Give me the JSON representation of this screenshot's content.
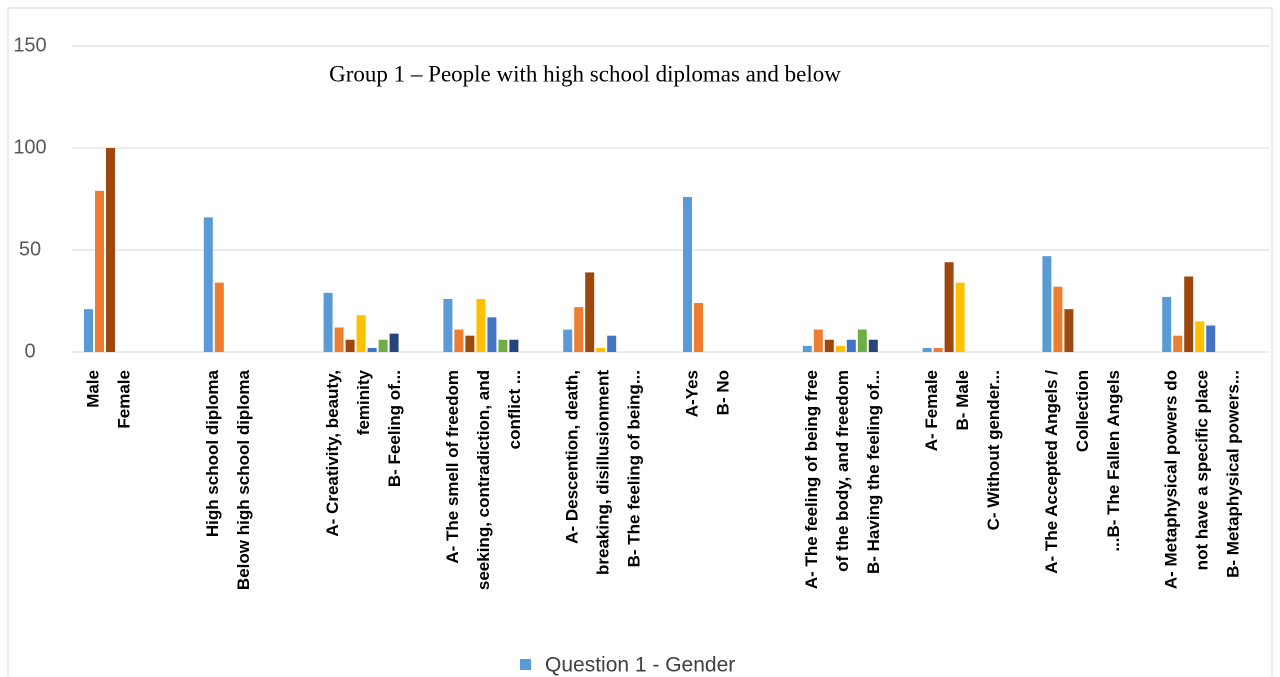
{
  "chart_data": {
    "type": "bar",
    "title": "Group 1 – People with high school diplomas and below",
    "categories": [
      [
        "Male",
        "Female"
      ],
      [
        "High school diploma",
        "Below high school diploma"
      ],
      [
        "A- Creativity, beauty,",
        "feminity",
        "B- Feeling of..."
      ],
      [
        "A- The smell of freedom",
        "seeking, contradiction, and",
        "conflict ..."
      ],
      [
        "A- Descention, death,",
        "breaking, disillusionment",
        "B- The feeling of being..."
      ],
      [
        "A-Yes",
        "B- No"
      ],
      [
        "A- The feeling of being free",
        "of the body, and freedom",
        "B- Having the feeling of..."
      ],
      [
        "A- Female",
        "B- Male",
        "C- Without gender..."
      ],
      [
        "A- The Accepted Angels /",
        "Collection",
        "...B- The Fallen Angels"
      ],
      [
        "A- Metaphysical powers do",
        "not have a specific place",
        "B- Metaphysical powers..."
      ]
    ],
    "series": [
      {
        "name": "Question 1 - Gender",
        "color": "#5b9bd5",
        "values": [
          21,
          66,
          29,
          26,
          11,
          76,
          3,
          2,
          47,
          27
        ]
      },
      {
        "color": "#ed7d31",
        "values": [
          79,
          34,
          12,
          11,
          22,
          24,
          11,
          2,
          32,
          8
        ]
      },
      {
        "color": "#9e480e",
        "values": [
          100,
          null,
          6,
          8,
          39,
          null,
          6,
          44,
          21,
          37
        ]
      },
      {
        "color": "#ffc000",
        "values": [
          null,
          null,
          18,
          26,
          2,
          null,
          3,
          34,
          null,
          15
        ]
      },
      {
        "color": "#4472c4",
        "values": [
          null,
          null,
          2,
          17,
          8,
          null,
          6,
          null,
          null,
          13
        ]
      },
      {
        "color": "#70ad47",
        "values": [
          null,
          null,
          6,
          6,
          null,
          null,
          11,
          null,
          null,
          null
        ]
      },
      {
        "color": "#264478",
        "values": [
          null,
          null,
          9,
          6,
          null,
          null,
          6,
          null,
          null,
          null
        ]
      }
    ],
    "ylim": [
      0,
      150
    ],
    "yticks": [
      0,
      50,
      100,
      150
    ],
    "grid": true
  }
}
